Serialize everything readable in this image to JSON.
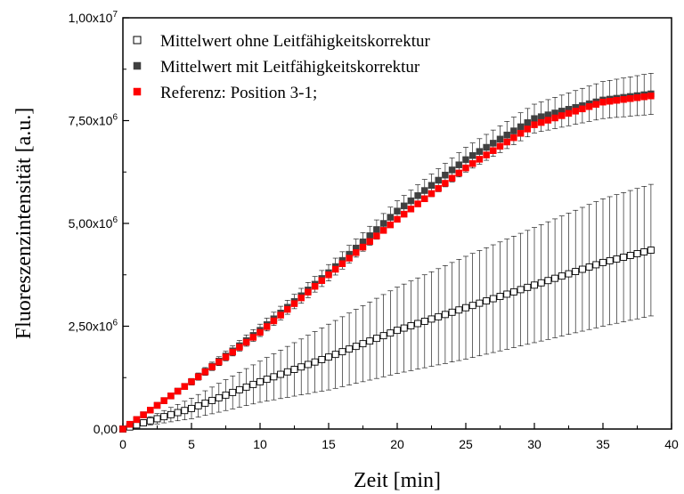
{
  "chart_data": {
    "type": "scatter",
    "title": "",
    "xlabel": "Zeit [min]",
    "ylabel": "Fluoreszenzintensität [a.u.]",
    "xlim": [
      0,
      40
    ],
    "ylim": [
      0,
      10000000
    ],
    "x_ticks": [
      0,
      5,
      10,
      15,
      20,
      25,
      30,
      35,
      40
    ],
    "x_tick_labels": [
      "0",
      "5",
      "10",
      "15",
      "20",
      "25",
      "30",
      "35",
      "40"
    ],
    "y_ticks": [
      0,
      2500000,
      5000000,
      7500000,
      10000000
    ],
    "y_tick_labels": [
      {
        "mantissa": "0,00",
        "exp": ""
      },
      {
        "mantissa": "2,50x10",
        "exp": "6"
      },
      {
        "mantissa": "5,00x10",
        "exp": "6"
      },
      {
        "mantissa": "7,50x10",
        "exp": "6"
      },
      {
        "mantissa": "1,00x10",
        "exp": "7"
      }
    ],
    "grid": false,
    "legend_position": "top-left",
    "series": [
      {
        "name": "Mittelwert ohne Leitfähigkeitskorrektur",
        "marker": "open-square",
        "color": "#000000",
        "fill": "#ffffff",
        "error_bars": true,
        "x": [
          0,
          5,
          10,
          15,
          20,
          25,
          30,
          35,
          38.5
        ],
        "y": [
          0,
          500000,
          1150000,
          1750000,
          2400000,
          2950000,
          3500000,
          4050000,
          4350000
        ],
        "err": [
          0,
          250000,
          500000,
          800000,
          1050000,
          1250000,
          1400000,
          1550000,
          1600000
        ]
      },
      {
        "name": "Mittelwert mit Leitfähigkeitskorrektur",
        "marker": "filled-square",
        "color": "#404040",
        "fill": "#404040",
        "error_bars": true,
        "x": [
          0,
          5,
          10,
          15,
          20,
          25,
          30,
          35,
          38.5
        ],
        "y": [
          0,
          1150000,
          2400000,
          3800000,
          5300000,
          6550000,
          7550000,
          8000000,
          8150000
        ],
        "err": [
          0,
          80000,
          150000,
          200000,
          250000,
          300000,
          350000,
          450000,
          500000
        ]
      },
      {
        "name": "Referenz: Position 3-1;",
        "marker": "filled-square",
        "color": "#ff0000",
        "fill": "#ff0000",
        "error_bars": false,
        "x": [
          0,
          5,
          10,
          15,
          20,
          25,
          30,
          35,
          38.5
        ],
        "y": [
          0,
          1150000,
          2350000,
          3750000,
          5100000,
          6350000,
          7400000,
          7950000,
          8100000
        ]
      }
    ]
  }
}
